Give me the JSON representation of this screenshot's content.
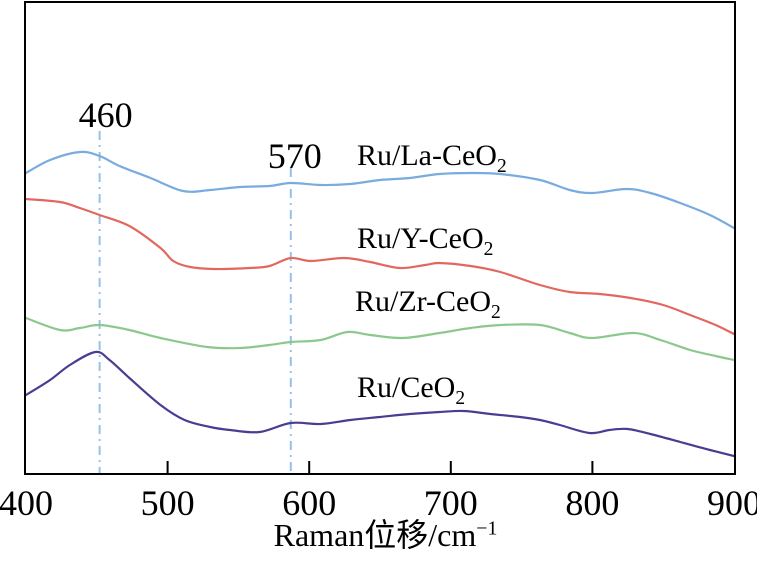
{
  "chart_data": {
    "type": "line",
    "title": "",
    "xlabel": "Raman位移/cm⁻¹",
    "xlabel_main": "Raman位移/cm",
    "xlabel_sup": "−1",
    "ylabel": "",
    "x_range": [
      400,
      900
    ],
    "ylim": [
      0,
      470
    ],
    "grid": false,
    "legend_position": "labels-next-to-curves",
    "x_tick_labels": [
      "400",
      "500",
      "600",
      "700",
      "800",
      "900"
    ],
    "x_tick_marks": [
      500,
      600,
      700,
      800
    ],
    "y_unit": "arbitrary intensity, no y-axis ticks shown",
    "colors": {
      "axis": "#000000",
      "annotation_line": "#96c0ea"
    },
    "annotations": [
      {
        "label": "460",
        "x": 452
      },
      {
        "label": "570",
        "x": 587
      }
    ],
    "series": [
      {
        "name": "Ru/La-CeO2",
        "label_main": "Ru/La-CeO",
        "label_sub": "2",
        "color": "#79abdf",
        "x": [
          400,
          417,
          438,
          452,
          466,
          488,
          511,
          530,
          551,
          572,
          587,
          608,
          629,
          650,
          671,
          692,
          714,
          735,
          763,
          784,
          800,
          824,
          841,
          862,
          883,
          900
        ],
        "y": [
          300,
          313,
          321,
          317,
          307,
          295,
          282,
          283,
          286,
          287,
          290,
          288,
          289,
          293,
          295,
          299,
          300,
          299,
          293,
          283,
          280,
          284,
          280,
          270,
          258,
          245
        ]
      },
      {
        "name": "Ru/Y-CeO2",
        "label_main": "Ru/Y-CeO",
        "label_sub": "2",
        "color": "#e2685f",
        "x": [
          400,
          424,
          438,
          452,
          473,
          495,
          504,
          516,
          533,
          558,
          572,
          587,
          601,
          625,
          643,
          664,
          682,
          692,
          714,
          735,
          763,
          784,
          805,
          827,
          850,
          869,
          887,
          900
        ],
        "y": [
          274,
          271,
          265,
          258,
          247,
          225,
          212,
          206,
          204,
          205,
          207,
          215,
          212,
          215,
          211,
          205,
          208,
          210,
          207,
          201,
          188,
          181,
          179,
          175,
          168,
          158,
          148,
          139
        ]
      },
      {
        "name": "Ru/Zr-CeO2",
        "label_main": "Ru/Zr-CeO",
        "label_sub": "2",
        "color": "#8cc88c",
        "x": [
          400,
          424,
          438,
          452,
          473,
          495,
          528,
          551,
          572,
          587,
          608,
          627,
          643,
          666,
          692,
          714,
          735,
          763,
          784,
          800,
          829,
          848,
          869,
          887,
          900
        ],
        "y": [
          155,
          143,
          145,
          148,
          143,
          135,
          126,
          125,
          128,
          131,
          133,
          141,
          138,
          135,
          140,
          145,
          148,
          148,
          140,
          135,
          140,
          133,
          123,
          117,
          113
        ]
      },
      {
        "name": "Ru/CeO2",
        "label_main": "Ru/CeO",
        "label_sub": "2",
        "color": "#4b3c92",
        "x": [
          400,
          417,
          431,
          449,
          459,
          473,
          495,
          512,
          530,
          544,
          565,
          587,
          608,
          629,
          650,
          671,
          692,
          709,
          728,
          749,
          763,
          777,
          798,
          812,
          825,
          841,
          862,
          883,
          900
        ],
        "y": [
          78,
          93,
          108,
          121,
          113,
          95,
          68,
          53,
          46,
          43,
          41,
          50,
          49,
          53,
          56,
          59,
          61,
          62,
          59,
          56,
          53,
          48,
          40,
          43,
          44,
          39,
          31,
          23,
          17
        ]
      }
    ]
  }
}
